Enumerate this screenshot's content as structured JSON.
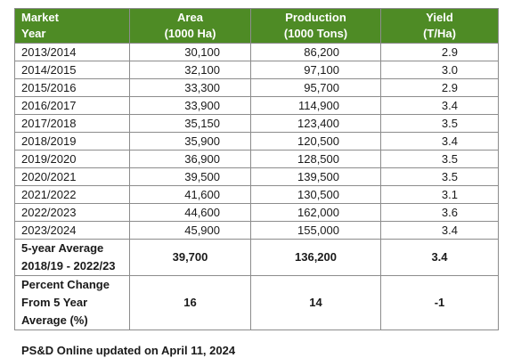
{
  "table": {
    "headers": {
      "year": [
        "Market",
        "Year"
      ],
      "area": [
        "Area",
        "(1000 Ha)"
      ],
      "production": [
        "Production",
        "(1000 Tons)"
      ],
      "yield": [
        "Yield",
        "(T/Ha)"
      ]
    },
    "rows": [
      {
        "year": "2013/2014",
        "area": "30,100",
        "production": "86,200",
        "yield": "2.9"
      },
      {
        "year": "2014/2015",
        "area": "32,100",
        "production": "97,100",
        "yield": "3.0"
      },
      {
        "year": "2015/2016",
        "area": "33,300",
        "production": "95,700",
        "yield": "2.9"
      },
      {
        "year": "2016/2017",
        "area": "33,900",
        "production": "114,900",
        "yield": "3.4"
      },
      {
        "year": "2017/2018",
        "area": "35,150",
        "production": "123,400",
        "yield": "3.5"
      },
      {
        "year": "2018/2019",
        "area": "35,900",
        "production": "120,500",
        "yield": "3.4"
      },
      {
        "year": "2019/2020",
        "area": "36,900",
        "production": "128,500",
        "yield": "3.5"
      },
      {
        "year": "2020/2021",
        "area": "39,500",
        "production": "139,500",
        "yield": "3.5"
      },
      {
        "year": "2021/2022",
        "area": "41,600",
        "production": "130,500",
        "yield": "3.1"
      },
      {
        "year": "2022/2023",
        "area": "44,600",
        "production": "162,000",
        "yield": "3.6"
      },
      {
        "year": "2023/2024",
        "area": "45,900",
        "production": "155,000",
        "yield": "3.4"
      }
    ],
    "five_year_average": {
      "label": [
        "5-year Average",
        "2018/19 - 2022/23"
      ],
      "area": "39,700",
      "production": "136,200",
      "yield": "3.4"
    },
    "percent_change": {
      "label": [
        "Percent Change",
        "From 5 Year",
        "Average (%)"
      ],
      "area": "16",
      "production": "14",
      "yield": "-1"
    }
  },
  "footer": {
    "text": "PS&D Online updated on April 11, 2024"
  },
  "colors": {
    "header_bg": "#4e8b25",
    "header_text": "#ffffff",
    "border": "#8c8c8c"
  }
}
